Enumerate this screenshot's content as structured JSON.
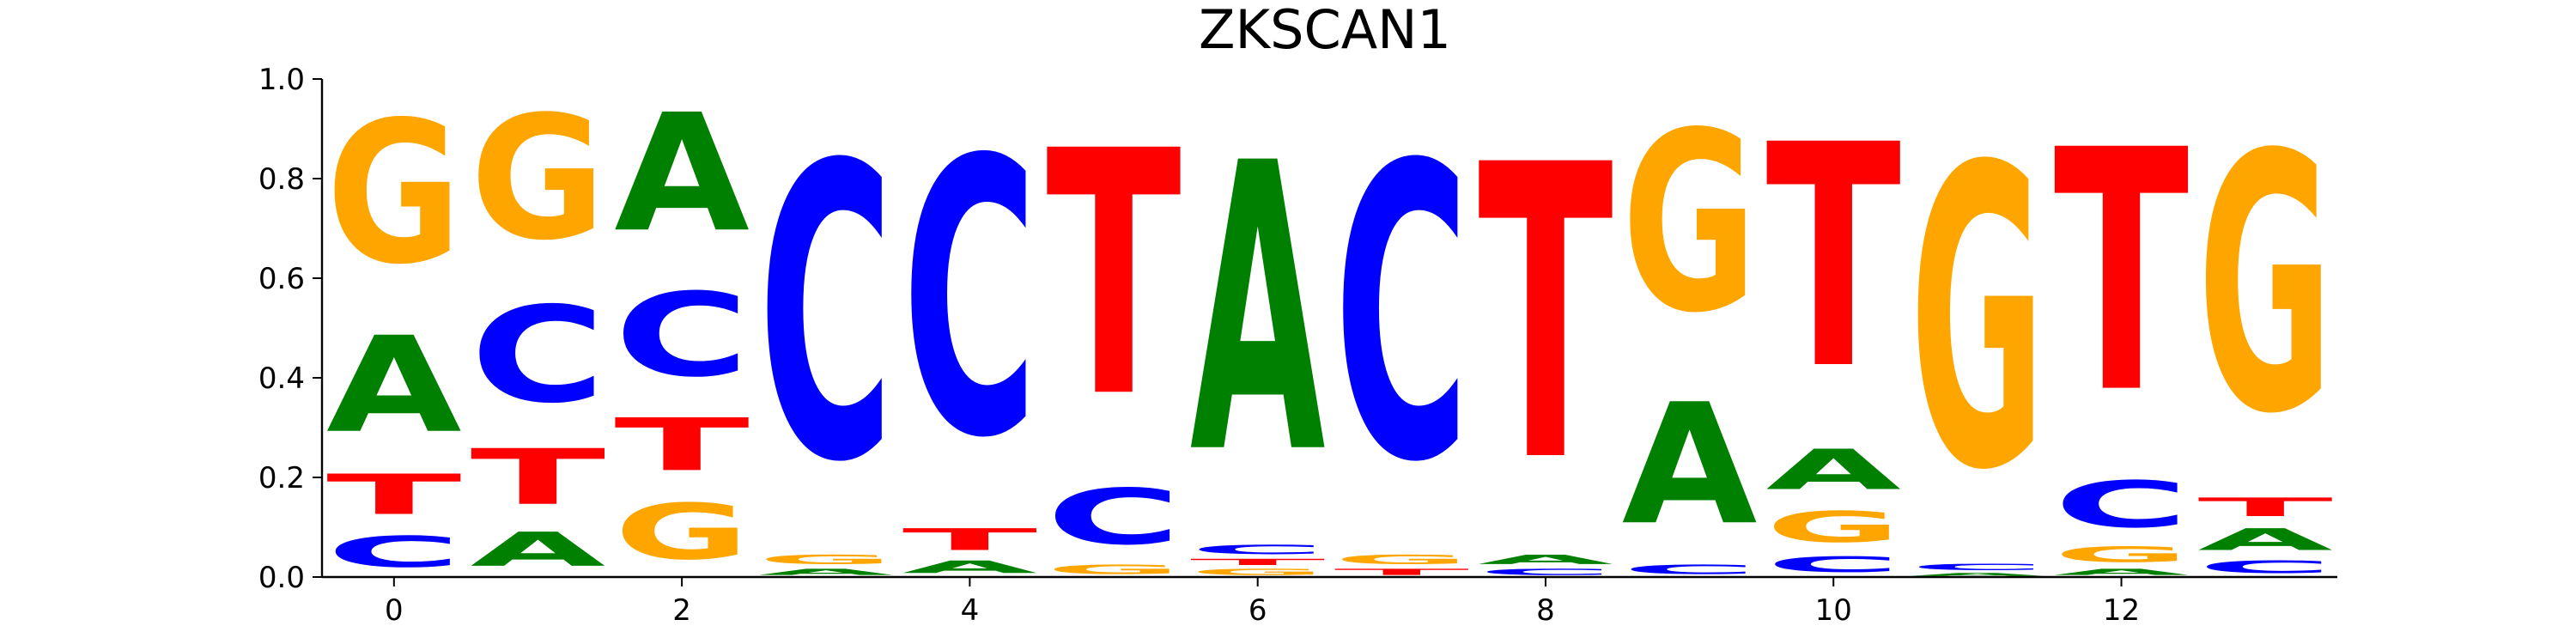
{
  "chart_data": {
    "type": "sequence-logo",
    "title": "ZKSCAN1",
    "xlabel": "",
    "ylabel": "",
    "xlim": [
      -0.5,
      13.5
    ],
    "ylim": [
      0,
      1
    ],
    "x_ticks": [
      "0",
      "2",
      "4",
      "6",
      "8",
      "10",
      "12"
    ],
    "y_ticks": [
      "0.0",
      "0.2",
      "0.4",
      "0.6",
      "0.8",
      "1.0"
    ],
    "grid": false,
    "colors": {
      "A": "#008000",
      "C": "#0000ff",
      "G": "#ffa500",
      "T": "#ff0000"
    },
    "positions": [
      {
        "pos": 0,
        "stack": [
          [
            "C",
            0.1
          ],
          [
            "T",
            0.13
          ],
          [
            "A",
            0.31
          ],
          [
            "G",
            0.46
          ]
        ]
      },
      {
        "pos": 1,
        "stack": [
          [
            "A",
            0.11
          ],
          [
            "T",
            0.18
          ],
          [
            "C",
            0.31
          ],
          [
            "G",
            0.4
          ]
        ]
      },
      {
        "pos": 2,
        "stack": [
          [
            "G",
            0.18
          ],
          [
            "T",
            0.17
          ],
          [
            "C",
            0.27
          ],
          [
            "A",
            0.38
          ]
        ]
      },
      {
        "pos": 3,
        "stack": [
          [
            "A",
            0.02
          ],
          [
            "G",
            0.03
          ],
          [
            "C",
            0.95
          ]
        ]
      },
      {
        "pos": 4,
        "stack": [
          [
            "A",
            0.04
          ],
          [
            "T",
            0.07
          ],
          [
            "C",
            0.89
          ]
        ]
      },
      {
        "pos": 5,
        "stack": [
          [
            "G",
            0.03
          ],
          [
            "C",
            0.18
          ],
          [
            "T",
            0.79
          ]
        ]
      },
      {
        "pos": 6,
        "stack": [
          [
            "G",
            0.02
          ],
          [
            "T",
            0.02
          ],
          [
            "C",
            0.03
          ],
          [
            "A",
            0.93
          ]
        ]
      },
      {
        "pos": 7,
        "stack": [
          [
            "T",
            0.02
          ],
          [
            "G",
            0.03
          ],
          [
            "C",
            0.95
          ]
        ]
      },
      {
        "pos": 8,
        "stack": [
          [
            "C",
            0.02
          ],
          [
            "A",
            0.03
          ],
          [
            "T",
            0.95
          ]
        ]
      },
      {
        "pos": 9,
        "stack": [
          [
            "C",
            0.03
          ],
          [
            "A",
            0.39
          ],
          [
            "G",
            0.58
          ]
        ]
      },
      {
        "pos": 10,
        "stack": [
          [
            "C",
            0.05
          ],
          [
            "G",
            0.1
          ],
          [
            "A",
            0.13
          ],
          [
            "T",
            0.72
          ]
        ]
      },
      {
        "pos": 11,
        "stack": [
          [
            "A",
            0.01
          ],
          [
            "C",
            0.02
          ],
          [
            "G",
            0.97
          ]
        ]
      },
      {
        "pos": 12,
        "stack": [
          [
            "A",
            0.02
          ],
          [
            "G",
            0.05
          ],
          [
            "C",
            0.15
          ],
          [
            "T",
            0.78
          ]
        ]
      },
      {
        "pos": 13,
        "stack": [
          [
            "C",
            0.04
          ],
          [
            "A",
            0.07
          ],
          [
            "T",
            0.06
          ],
          [
            "G",
            0.83
          ]
        ]
      }
    ]
  }
}
